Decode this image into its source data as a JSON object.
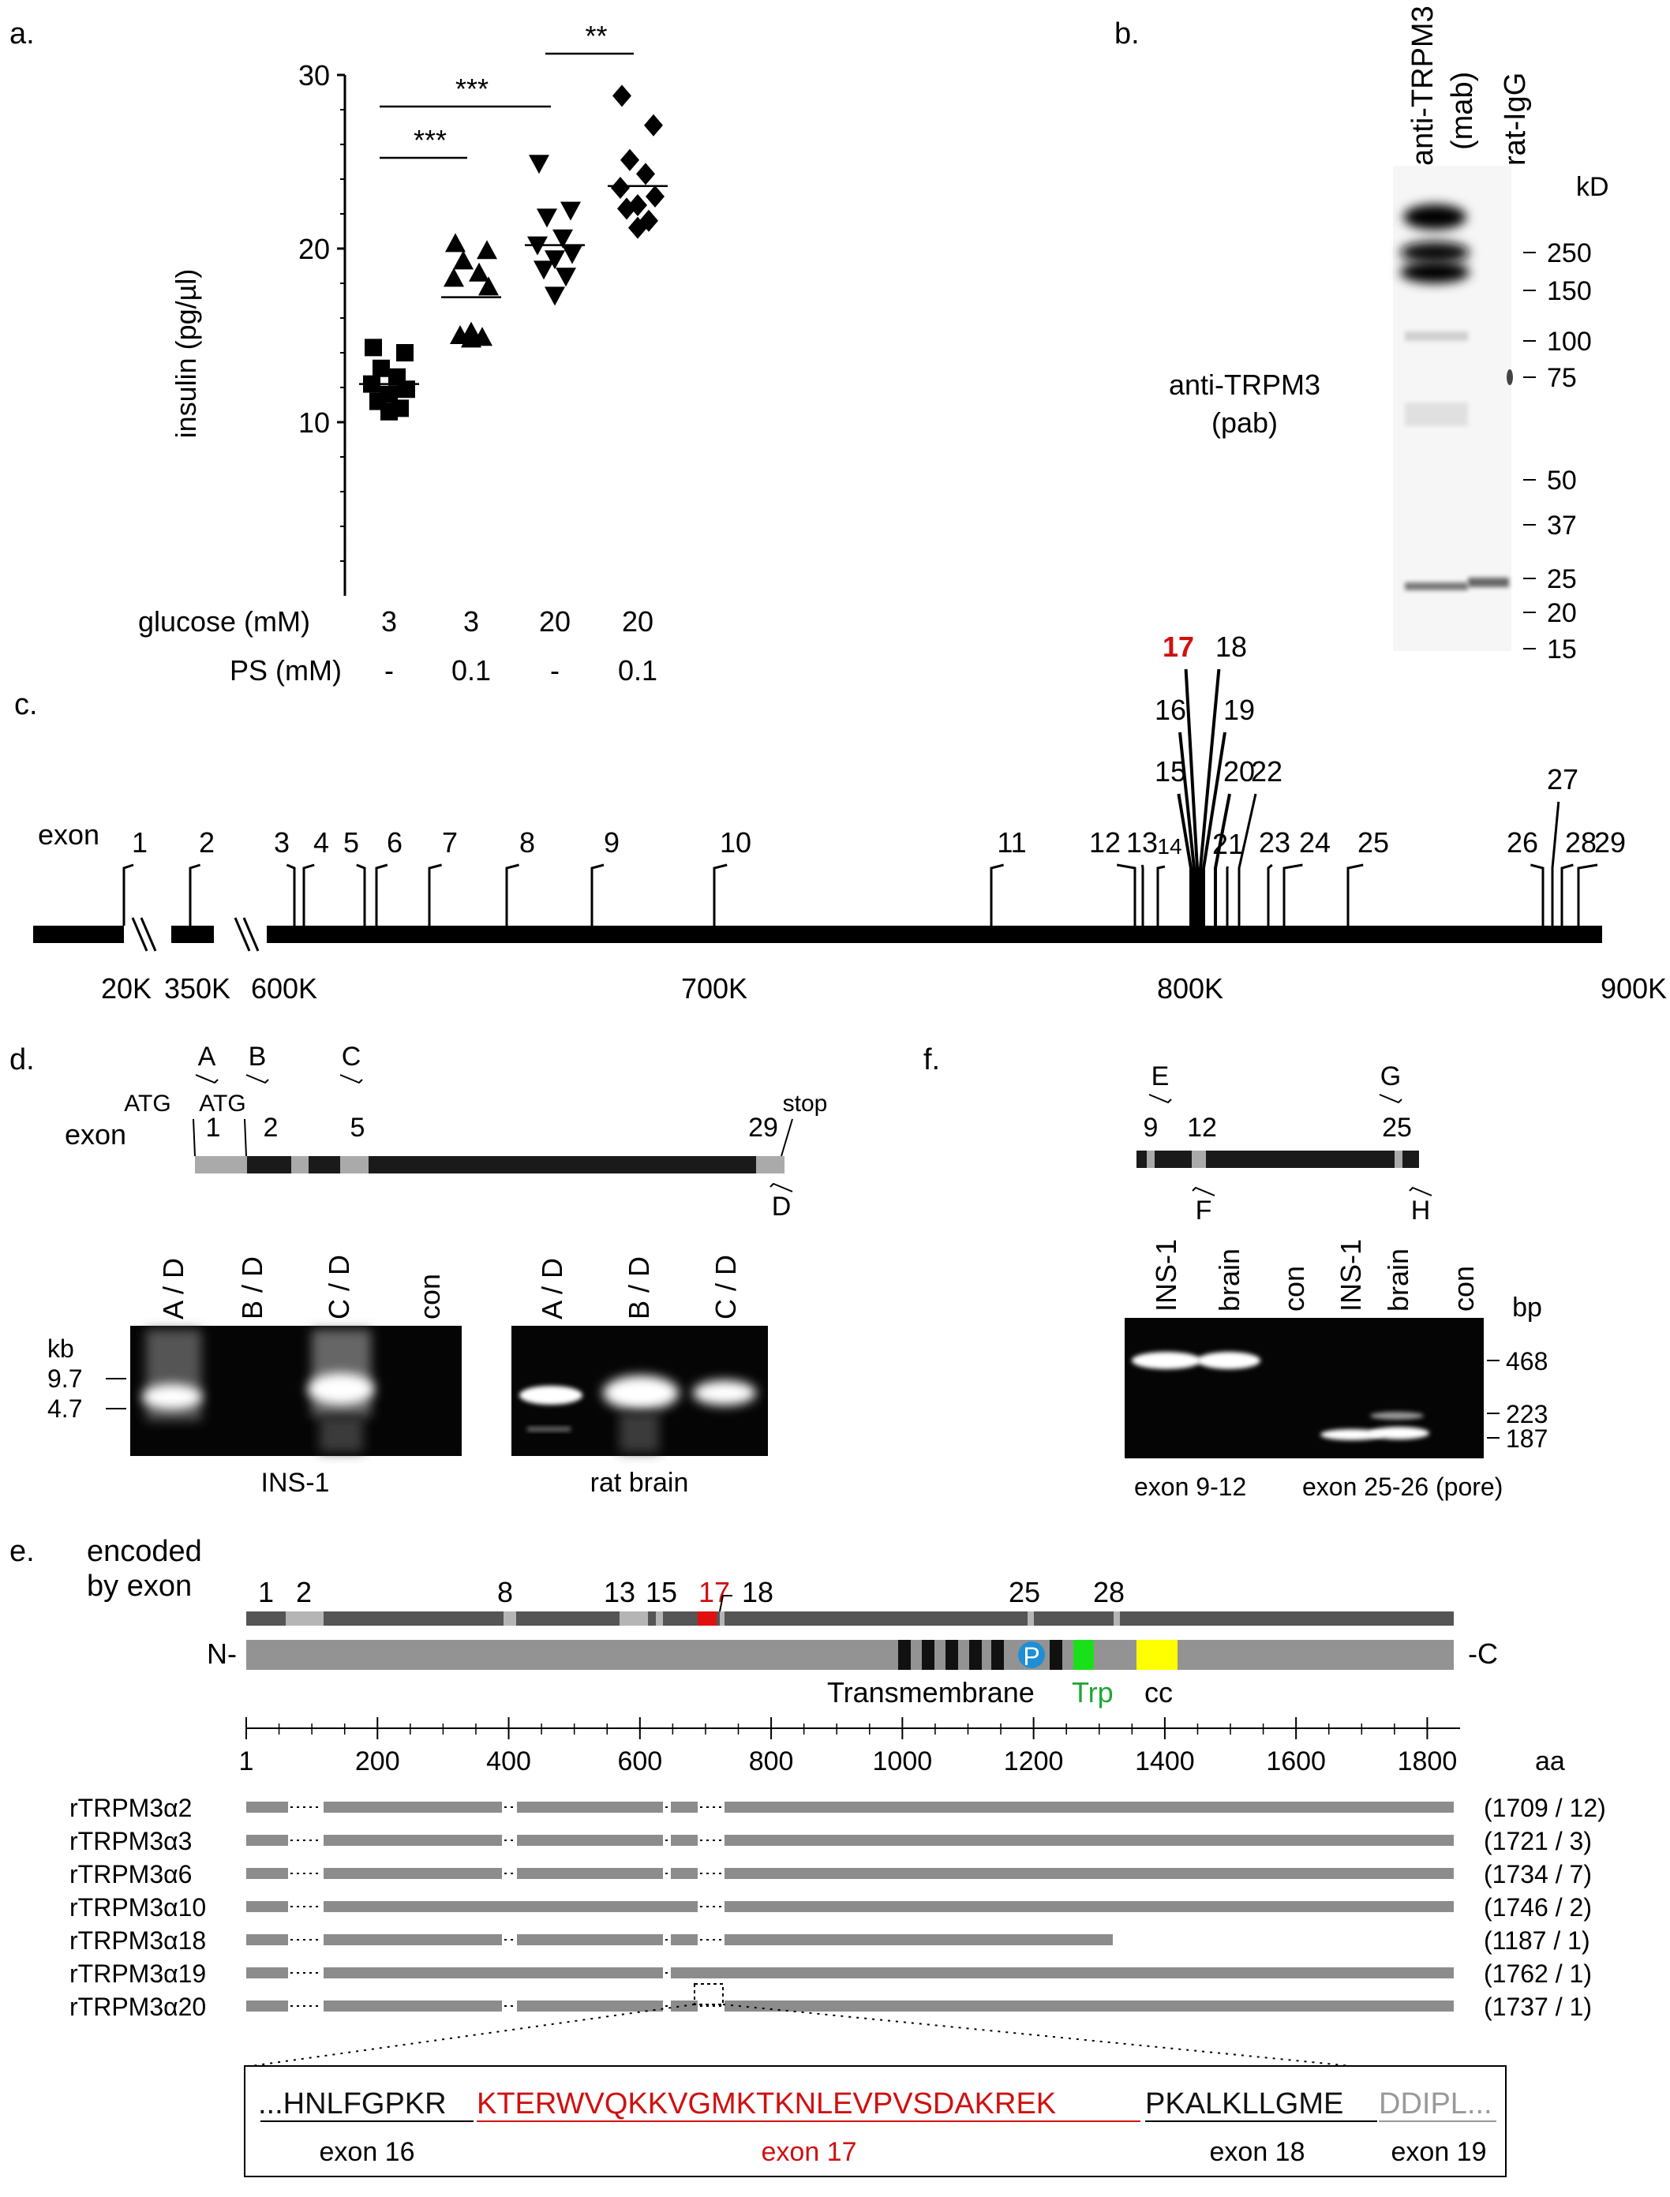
{
  "panels": {
    "a": {
      "label": "a.",
      "ylabel": "insulin (pg/µl)",
      "yticks": [
        "10",
        "20",
        "30"
      ],
      "row1_label": "glucose (mM)",
      "row2_label": "PS (mM)",
      "glucose": [
        "3",
        "3",
        "20",
        "20"
      ],
      "ps": [
        "-",
        "0.1",
        "-",
        "0.1"
      ],
      "sig": [
        "***",
        "***",
        "**"
      ]
    },
    "b": {
      "label": "b.",
      "lanes": [
        "anti-TRPM3",
        "(mab)",
        "rat-IgG"
      ],
      "probe": [
        "anti-TRPM3",
        "(pab)"
      ],
      "unit": "kD",
      "markers": [
        "250",
        "150",
        "100",
        "75",
        "50",
        "37",
        "25",
        "20",
        "15"
      ]
    },
    "c": {
      "label": "c.",
      "exon_word": "exon",
      "exons": [
        "1",
        "2",
        "3",
        "4",
        "5",
        "6",
        "7",
        "8",
        "9",
        "10",
        "11",
        "12",
        "13",
        "14",
        "15",
        "16",
        "17",
        "18",
        "19",
        "20",
        "21",
        "22",
        "23",
        "24",
        "25",
        "26",
        "27",
        "28",
        "29"
      ],
      "axis": [
        "20K",
        "350K",
        "600K",
        "700K",
        "800K",
        "900K"
      ]
    },
    "d": {
      "label": "d.",
      "primers": [
        "A",
        "B",
        "C",
        "D"
      ],
      "atg": "ATG",
      "stop": "stop",
      "exon_word": "exon",
      "exon_nums": [
        "1",
        "2",
        "5",
        "29"
      ],
      "kb": "kb",
      "kb_markers": [
        "9.7",
        "4.7"
      ],
      "lanes1": [
        "A / D",
        "B / D",
        "C / D",
        "con"
      ],
      "lanes2": [
        "A / D",
        "B / D",
        "C / D"
      ],
      "caption1": "INS-1",
      "caption2": "rat brain"
    },
    "f": {
      "label": "f.",
      "primers": [
        "E",
        "G",
        "F",
        "H"
      ],
      "exon_nums": [
        "9",
        "12",
        "25"
      ],
      "lanes": [
        "INS-1",
        "brain",
        "con",
        "INS-1",
        "brain",
        "con"
      ],
      "bp": "bp",
      "bp_markers": [
        "468",
        "223",
        "187"
      ],
      "caption1": "exon 9-12",
      "caption2": "exon 25-26 (pore)"
    },
    "e": {
      "label": "e.",
      "encoded": [
        "encoded",
        "by exon"
      ],
      "exon_nums": [
        "1",
        "2",
        "8",
        "13",
        "15",
        "17",
        "18",
        "25",
        "28"
      ],
      "n_term": "N-",
      "c_term": "-C",
      "p_label": "P",
      "tm_label": "Transmembrane",
      "trp_label": "Trp",
      "cc_label": "cc",
      "axis_ticks": [
        "1",
        "200",
        "400",
        "600",
        "800",
        "1000",
        "1200",
        "1400",
        "1600",
        "1800"
      ],
      "axis_unit": "aa",
      "isoforms": [
        {
          "name": "rTRPM3α2",
          "info": "(1709 / 12)"
        },
        {
          "name": "rTRPM3α3",
          "info": "(1721 /  3)"
        },
        {
          "name": "rTRPM3α6",
          "info": "(1734 /  7)"
        },
        {
          "name": "rTRPM3α10",
          "info": "(1746 /  2)"
        },
        {
          "name": "rTRPM3α18",
          "info": "(1187 /  1)"
        },
        {
          "name": "rTRPM3α19",
          "info": "(1762 /  1)"
        },
        {
          "name": "rTRPM3α20",
          "info": "(1737 /  1)"
        }
      ],
      "seq_exon16": "...HNLFGPKR",
      "seq_exon17": "KTERWVQKKVGMKTKNLEVPVSDAKREK",
      "seq_exon18": "PKALKLLGME",
      "seq_exon19": "DDIPL...",
      "seq_labels": [
        "exon 16",
        "exon 17",
        "exon 18",
        "exon 19"
      ]
    }
  },
  "chart_data": {
    "type": "scatter",
    "title": "",
    "xlabel": "",
    "ylabel": "insulin (pg/µl)",
    "ylim": [
      0,
      30
    ],
    "categories": [
      "3 / -",
      "3 / 0.1",
      "20 / -",
      "20 / 0.1"
    ],
    "series": [
      {
        "marker": "square",
        "values": [
          14.3,
          14.0,
          13.1,
          12.6,
          12.2,
          11.9,
          11.6,
          11.2,
          10.8,
          10.6
        ],
        "mean": 12.2
      },
      {
        "marker": "triangle-up",
        "values": [
          20.3,
          19.9,
          19.3,
          18.6,
          18.3,
          17.8,
          15.2,
          15.0,
          14.9,
          14.8
        ],
        "mean": 17.2
      },
      {
        "marker": "triangle-down",
        "values": [
          24.9,
          22.2,
          21.8,
          20.6,
          20.2,
          19.7,
          19.4,
          18.8,
          18.4,
          17.3
        ],
        "mean": 20.2
      },
      {
        "marker": "diamond",
        "values": [
          28.8,
          27.1,
          25.1,
          24.3,
          23.5,
          23.0,
          22.5,
          22.3,
          21.6,
          21.2
        ],
        "mean": 23.6
      }
    ],
    "significance": [
      {
        "groups": [
          "3 / -",
          "3 / 0.1"
        ],
        "label": "***"
      },
      {
        "groups": [
          "3 / -",
          "20 / -"
        ],
        "label": "***"
      },
      {
        "groups": [
          "20 / -",
          "20 / 0.1"
        ],
        "label": "**"
      }
    ]
  }
}
